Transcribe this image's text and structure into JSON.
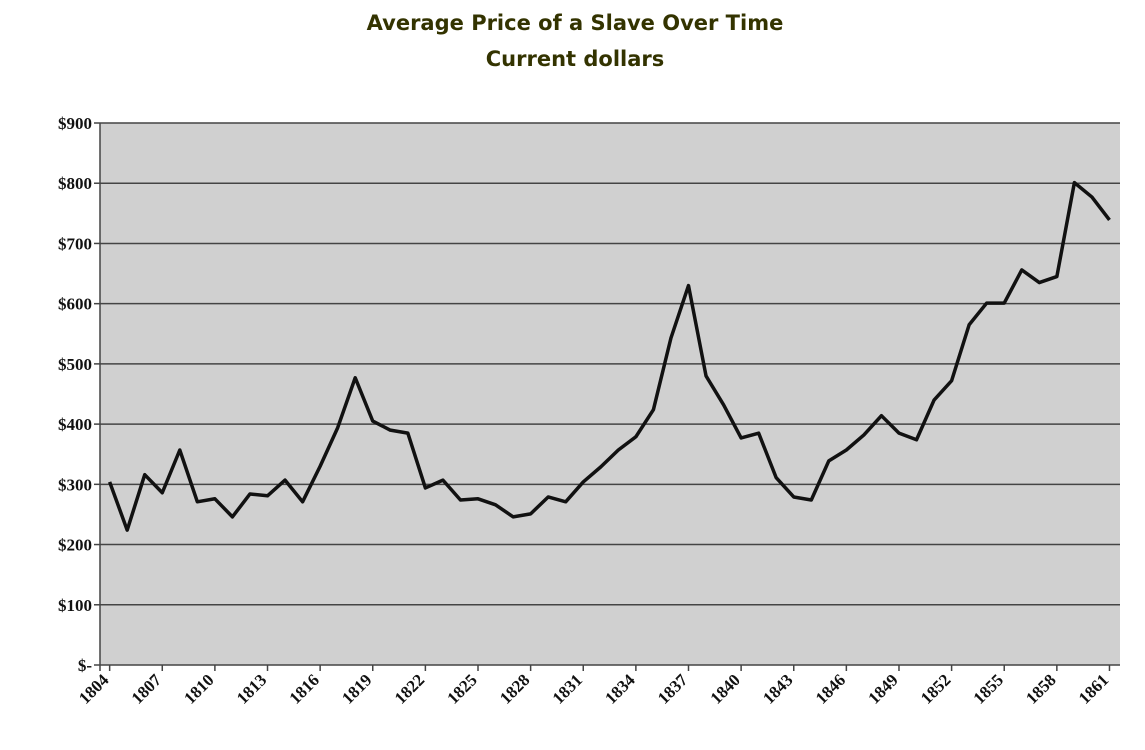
{
  "chart_data": {
    "type": "line",
    "title": "Average Price of a Slave Over Time",
    "subtitle": "Current dollars",
    "x": [
      1804,
      1805,
      1806,
      1807,
      1808,
      1809,
      1810,
      1811,
      1812,
      1813,
      1814,
      1815,
      1816,
      1817,
      1818,
      1819,
      1820,
      1821,
      1822,
      1823,
      1824,
      1825,
      1826,
      1827,
      1828,
      1829,
      1830,
      1831,
      1832,
      1833,
      1834,
      1835,
      1836,
      1837,
      1838,
      1839,
      1840,
      1841,
      1842,
      1843,
      1844,
      1845,
      1846,
      1847,
      1848,
      1849,
      1850,
      1851,
      1852,
      1853,
      1854,
      1855,
      1856,
      1857,
      1858,
      1859,
      1860,
      1861
    ],
    "series": [
      {
        "name": "Average price",
        "color": "#111111",
        "values": [
          304,
          224,
          316,
          286,
          357,
          271,
          276,
          246,
          284,
          281,
          307,
          271,
          330,
          394,
          477,
          405,
          390,
          385,
          294,
          307,
          274,
          276,
          266,
          246,
          251,
          279,
          271,
          304,
          329,
          357,
          379,
          424,
          543,
          630,
          480,
          432,
          377,
          385,
          311,
          279,
          274,
          339,
          357,
          382,
          414,
          385,
          374,
          440,
          472,
          565,
          601,
          601,
          656,
          635,
          645,
          801,
          777,
          739
        ]
      }
    ],
    "xlim": [
      1803.45,
      1861.6
    ],
    "xticks": [
      1804,
      1807,
      1810,
      1813,
      1816,
      1819,
      1822,
      1825,
      1828,
      1831,
      1834,
      1837,
      1840,
      1843,
      1846,
      1849,
      1852,
      1855,
      1858,
      1861
    ],
    "ylim": [
      0,
      900
    ],
    "yticks": [
      {
        "value": 0,
        "label": "$-"
      },
      {
        "value": 100,
        "label": "$100"
      },
      {
        "value": 200,
        "label": "$200"
      },
      {
        "value": 300,
        "label": "$300"
      },
      {
        "value": 400,
        "label": "$400"
      },
      {
        "value": 500,
        "label": "$500"
      },
      {
        "value": 600,
        "label": "$600"
      },
      {
        "value": 700,
        "label": "$700"
      },
      {
        "value": 800,
        "label": "$800"
      },
      {
        "value": 900,
        "label": "$900"
      }
    ],
    "grid": true
  }
}
